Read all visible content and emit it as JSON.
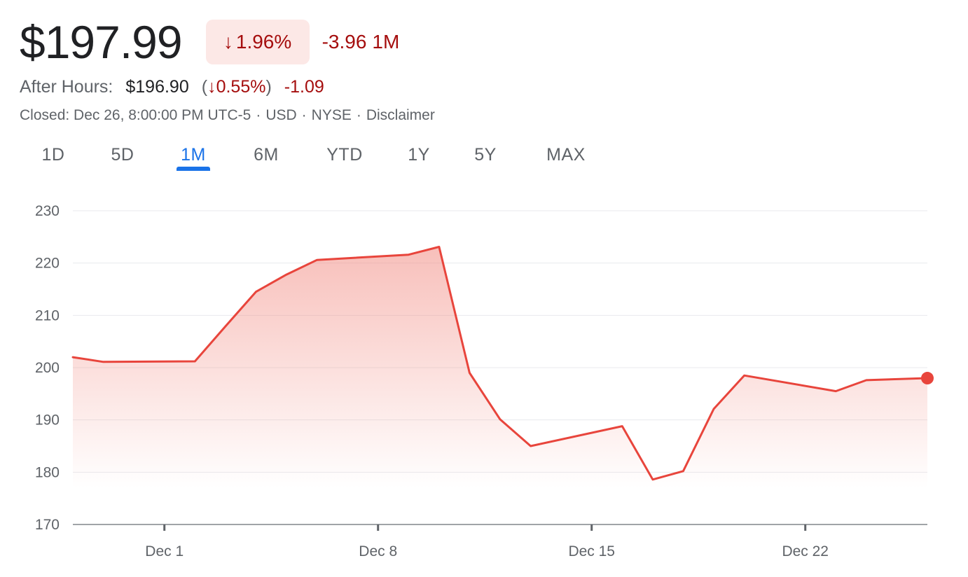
{
  "quote": {
    "price": "$197.99",
    "change_arrow": "↓",
    "change_pct": "1.96%",
    "change_value": "-3.96",
    "change_period": "1M"
  },
  "after_hours": {
    "label": "After Hours:",
    "price": "$196.90",
    "paren_open": "(",
    "arrow": "↓",
    "pct": "0.55%",
    "paren_close": ")",
    "change": "-1.09"
  },
  "status": {
    "closed": "Closed: Dec 26, 8:00:00 PM UTC-5",
    "currency": "USD",
    "exchange": "NYSE",
    "disclaimer": "Disclaimer",
    "separator": "·"
  },
  "ranges": {
    "items": [
      "1D",
      "5D",
      "1M",
      "6M",
      "YTD",
      "1Y",
      "5Y",
      "MAX"
    ],
    "selected": "1M"
  },
  "colors": {
    "negative": "#a50e0e",
    "line": "#e8453c",
    "accent": "#1a73e8"
  },
  "chart_data": {
    "type": "area",
    "x": [
      "Nov 28",
      "Nov 29",
      "Dec 2",
      "Dec 3",
      "Dec 4",
      "Dec 5",
      "Dec 6",
      "Dec 9",
      "Dec 10",
      "Dec 11",
      "Dec 12",
      "Dec 13",
      "Dec 16",
      "Dec 17",
      "Dec 18",
      "Dec 19",
      "Dec 20",
      "Dec 23",
      "Dec 24",
      "Dec 26"
    ],
    "y": [
      202.0,
      201.1,
      201.2,
      207.9,
      214.5,
      217.8,
      220.6,
      221.6,
      223.1,
      199.0,
      190.1,
      185.0,
      188.8,
      178.6,
      180.2,
      192.1,
      198.5,
      195.5,
      197.6,
      197.99
    ],
    "ylim": [
      170,
      230
    ],
    "yticks": [
      170,
      180,
      190,
      200,
      210,
      220,
      230
    ],
    "xtick_labels": [
      {
        "label": "Dec 1",
        "date": "Dec 1"
      },
      {
        "label": "Dec 8",
        "date": "Dec 8"
      },
      {
        "label": "Dec 15",
        "date": "Dec 15"
      },
      {
        "label": "Dec 22",
        "date": "Dec 22"
      }
    ],
    "grid": true,
    "last_point_marker": true
  }
}
